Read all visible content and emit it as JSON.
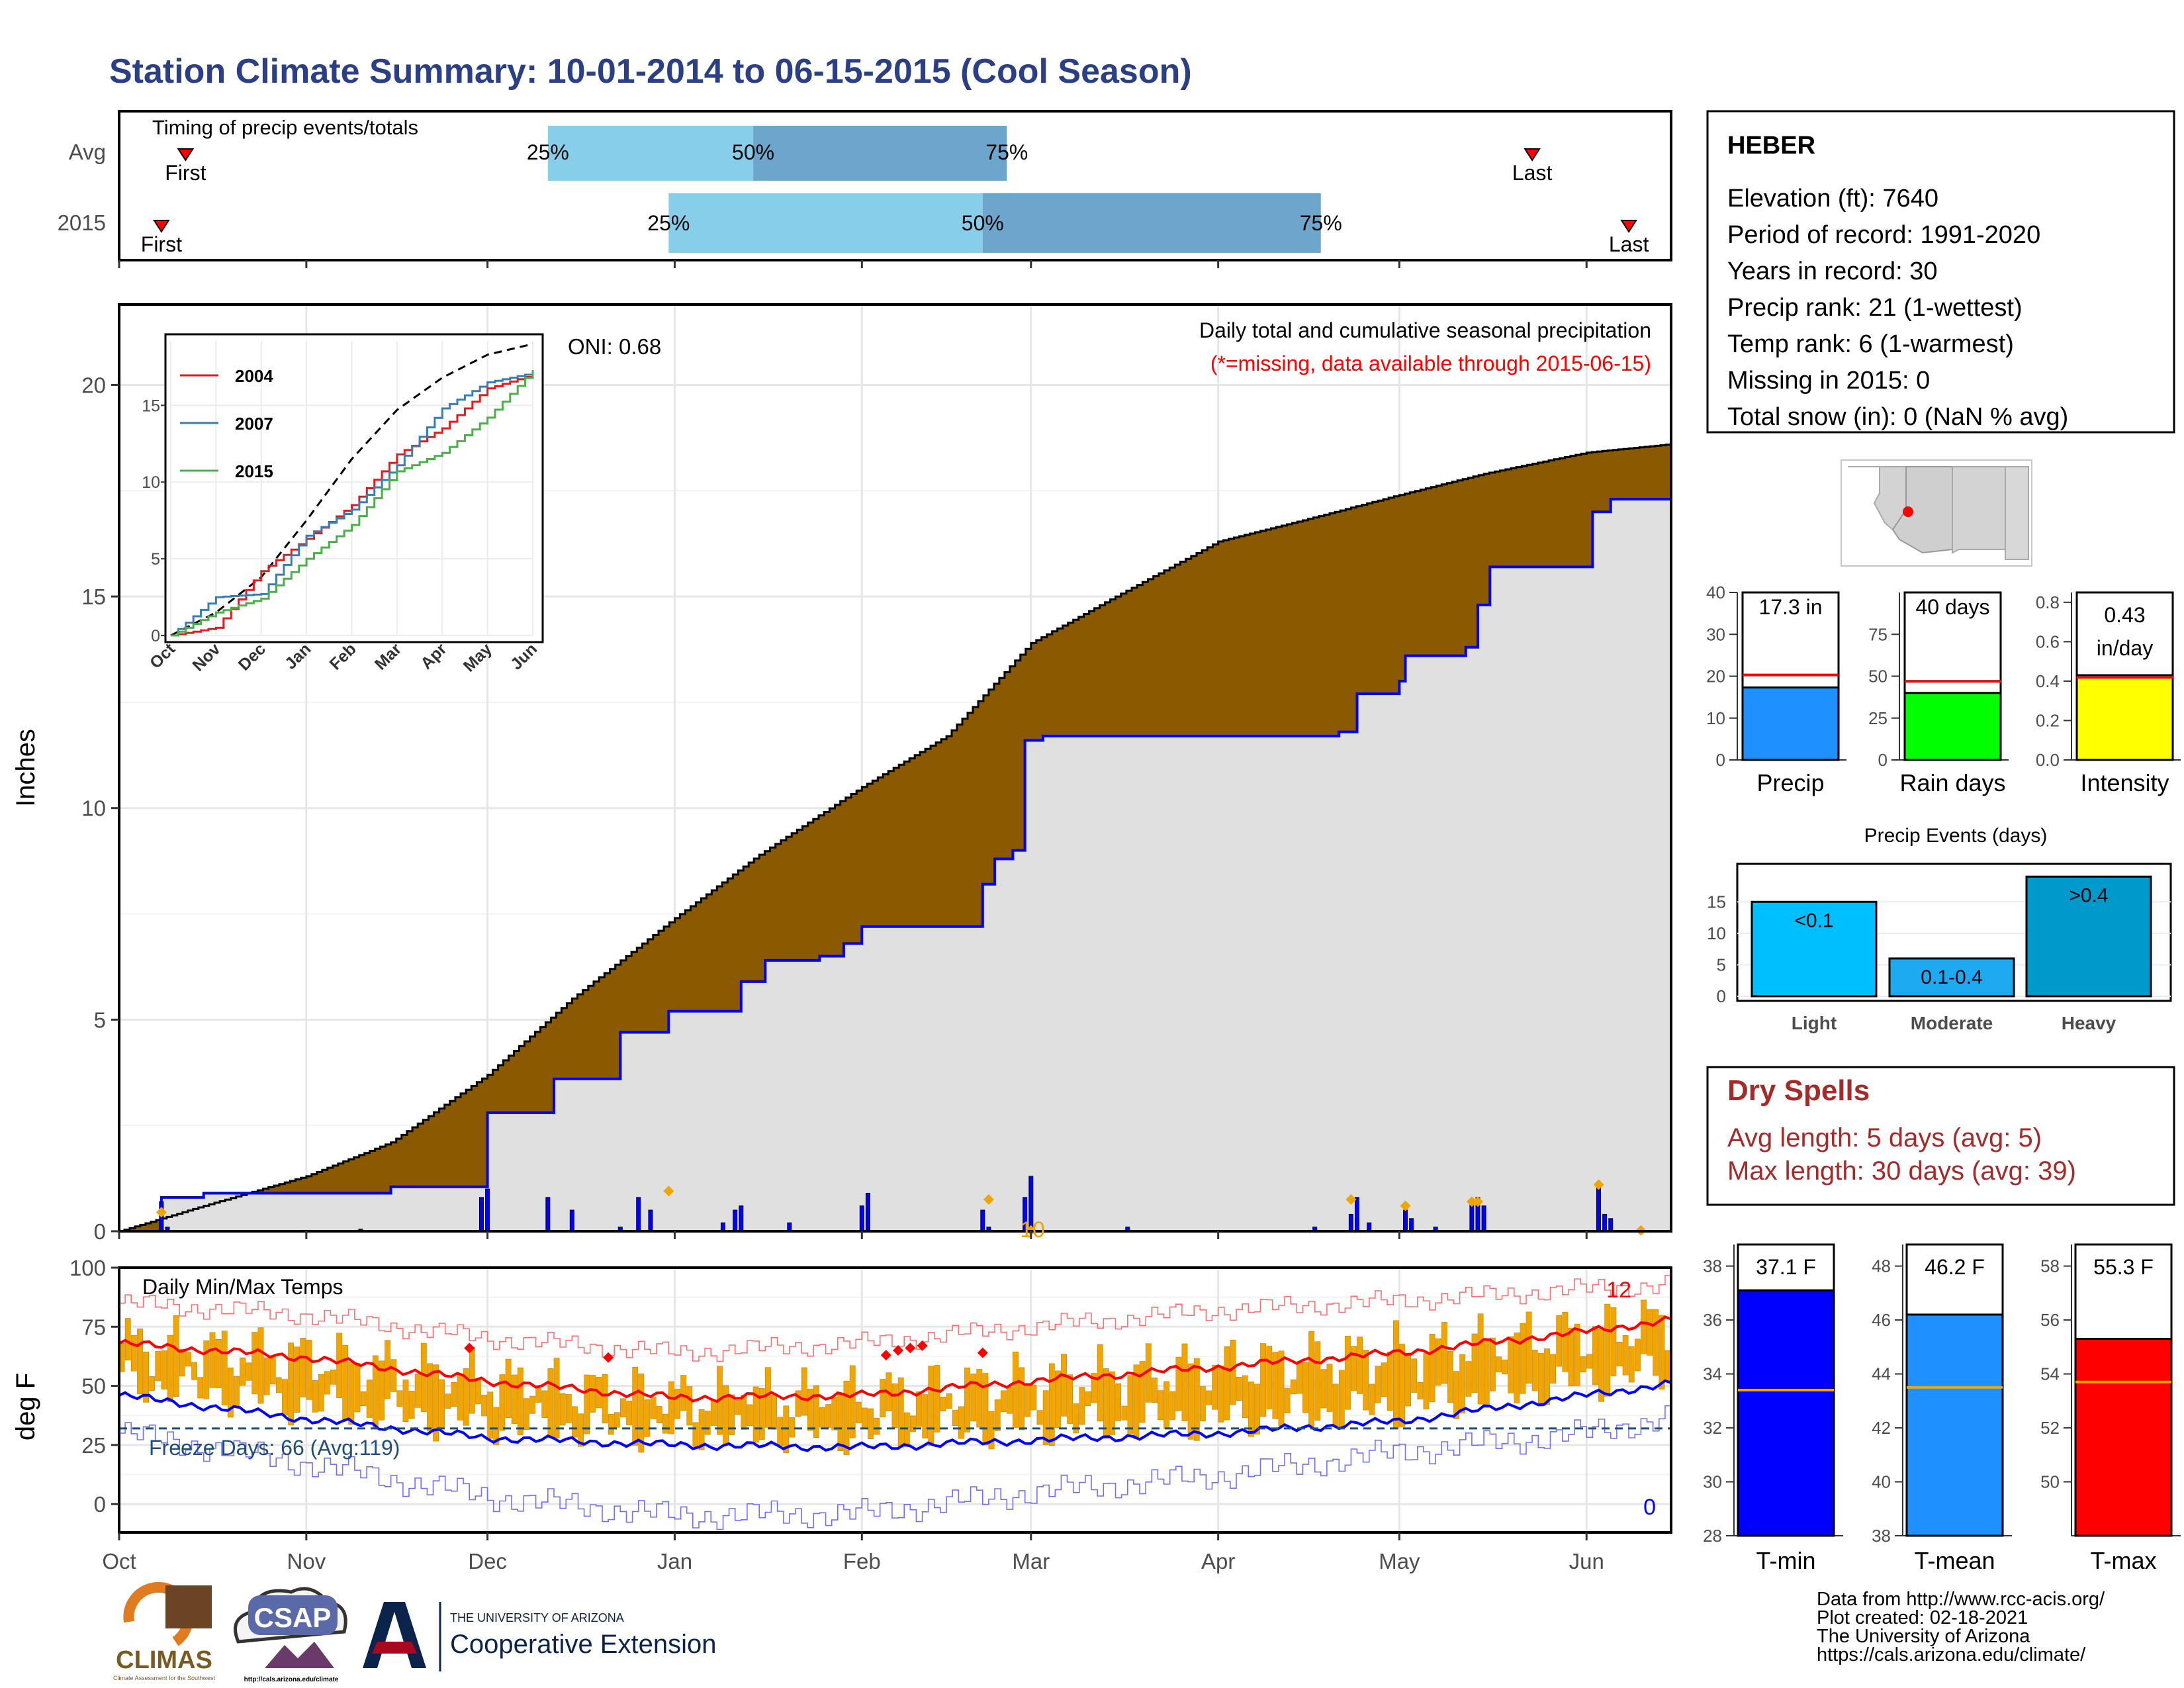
{
  "title": "Station Climate Summary: 10-01-2014 to 06-15-2015 (Cool Season)",
  "colors": {
    "title": "#2b3f87",
    "brown": "#8b5a00",
    "grey_fill": "#e0e0e0",
    "blue_line": "#0000ff",
    "orange": "#f0a500",
    "red": "#ff0000",
    "light_blue_bar": "#87ceeb",
    "mid_blue_bar": "#6ca6cd",
    "dark_red_text": "#a52a2a",
    "navy_text": "#1f4e79"
  },
  "timing": {
    "label": "Timing of precip events/totals",
    "rows": [
      {
        "name": "Avg",
        "first_label": "First",
        "last_label": "Last",
        "first": "2014-10-12",
        "p25": "2014-12-11",
        "p50": "2015-01-14",
        "p75": "2015-02-25",
        "last": "2015-05-23"
      },
      {
        "name": "2015",
        "first_label": "First",
        "last_label": "Last",
        "first": "2014-10-08",
        "p25": "2014-12-31",
        "p50": "2015-02-21",
        "p75": "2015-04-18",
        "last": "2015-06-08"
      }
    ],
    "pct_labels": [
      "25%",
      "50%",
      "75%"
    ]
  },
  "station": {
    "name": "HEBER",
    "lines": [
      "Elevation (ft): 7640",
      "Period of record: 1991-2020",
      "Years in record: 30",
      "Precip rank: 21 (1-wettest)",
      "Temp rank: 6 (1-warmest)",
      "Missing in 2015: 0",
      "Total snow (in): 0 (NaN % avg)"
    ]
  },
  "precip_panel": {
    "ylabel": "Inches",
    "title_line1": "Daily total and cumulative seasonal precipitation",
    "title_line2": "(*=missing, data available through 2015-06-15)",
    "oni": "ONI: 0.68",
    "count_label": "10",
    "yticks": [
      "0",
      "5",
      "10",
      "15",
      "20"
    ],
    "inset": {
      "legend": [
        "2004",
        "2007",
        "2015"
      ],
      "legend_colors": [
        "#e41a1c",
        "#377eb8",
        "#4daf4a"
      ],
      "yticks": [
        "0",
        "5",
        "10",
        "15"
      ],
      "xticks": [
        "Oct",
        "Nov",
        "Dec",
        "Jan",
        "Feb",
        "Mar",
        "Apr",
        "May",
        "Jun"
      ]
    }
  },
  "temp_panel": {
    "ylabel": "deg F",
    "label": "Daily Min/Max Temps",
    "freeze_text": "Freeze Days: 66 (Avg:119)",
    "hot_count": "12",
    "cold_count": "0",
    "yticks": [
      "0",
      "25",
      "50",
      "75",
      "100"
    ]
  },
  "months": [
    "Oct",
    "Nov",
    "Dec",
    "Jan",
    "Feb",
    "Mar",
    "Apr",
    "May",
    "Jun"
  ],
  "side_bars": [
    {
      "label": "Precip",
      "value_text": "17.3 in",
      "value": 17.3,
      "avg": 20.3,
      "ymax": 40,
      "yticks": [
        "0",
        "10",
        "20",
        "30",
        "40"
      ],
      "tickvals": [
        0,
        10,
        20,
        30,
        40
      ],
      "color": "#1e90ff"
    },
    {
      "label": "Rain days",
      "value_text": "40 days",
      "value": 40,
      "avg": 47,
      "ymax": 100,
      "yticks": [
        "0",
        "25",
        "50",
        "75"
      ],
      "tickvals": [
        0,
        25,
        50,
        75
      ],
      "color": "#00ff00"
    },
    {
      "label": "Intensity",
      "value_text_1": "0.43",
      "value_text_2": "in/day",
      "value": 0.43,
      "avg": 0.42,
      "ymax": 0.85,
      "yticks": [
        "0.0",
        "0.2",
        "0.4",
        "0.6",
        "0.8"
      ],
      "tickvals": [
        0,
        0.2,
        0.4,
        0.6,
        0.8
      ],
      "color": "#ffff00"
    }
  ],
  "events": {
    "title": "Precip Events (days)",
    "categories": [
      "Light",
      "Moderate",
      "Heavy"
    ],
    "labels": [
      "<0.1",
      "0.1-0.4",
      ">0.4"
    ],
    "values": [
      15,
      6,
      19
    ],
    "colors": [
      "#00bfff",
      "#1eaaf0",
      "#0099cc"
    ],
    "yticks": [
      "0",
      "5",
      "10",
      "15"
    ]
  },
  "dry_spells": {
    "title": "Dry Spells",
    "avg_length": "Avg length: 5 days (avg: 5)",
    "max_length": "Max length: 30 days (avg: 39)"
  },
  "temp_bars": [
    {
      "label": "T-min",
      "value_text": "37.1 F",
      "value": 37.1,
      "avg": 33.4,
      "ymin": 28,
      "ymax": 38.8,
      "yticks": [
        "28",
        "30",
        "32",
        "34",
        "36",
        "38"
      ],
      "tickvals": [
        28,
        30,
        32,
        34,
        36,
        38
      ],
      "color": "#0000ff"
    },
    {
      "label": "T-mean",
      "value_text": "46.2 F",
      "value": 46.2,
      "avg": 43.5,
      "ymin": 38,
      "ymax": 48.8,
      "yticks": [
        "38",
        "40",
        "42",
        "44",
        "46",
        "48"
      ],
      "tickvals": [
        38,
        40,
        42,
        44,
        46,
        48
      ],
      "color": "#1e90ff"
    },
    {
      "label": "T-max",
      "value_text": "55.3 F",
      "value": 55.3,
      "avg": 53.7,
      "ymin": 48,
      "ymax": 58.8,
      "yticks": [
        "50",
        "52",
        "54",
        "56",
        "58"
      ],
      "tickvals": [
        50,
        52,
        54,
        56,
        58
      ],
      "color": "#ff0000"
    }
  ],
  "footer": {
    "lines": [
      "Data from http://www.rcc-acis.org/",
      "Plot created: 02-18-2021",
      "The University of Arizona",
      "https://cals.arizona.edu/climate/"
    ],
    "climas": "CLIMAS",
    "climas_sub": "Climate Assessment for the Southwest",
    "csap": "CSAP",
    "csap_url": "http://cals.arizona.edu/climate",
    "ua_top": "THE UNIVERSITY OF ARIZONA",
    "ua_bottom": "Cooperative Extension",
    "ua_letter": "A"
  },
  "chart_data": [
    {
      "type": "bar",
      "title": "Timing of precip events/totals",
      "categories": [
        "Avg",
        "2015"
      ],
      "series": [
        {
          "name": "First",
          "values": [
            "2014-10-12",
            "2014-10-08"
          ]
        },
        {
          "name": "25%",
          "values": [
            "2014-12-11",
            "2014-12-31"
          ]
        },
        {
          "name": "50%",
          "values": [
            "2015-01-14",
            "2015-02-21"
          ]
        },
        {
          "name": "75%",
          "values": [
            "2015-02-25",
            "2015-04-18"
          ]
        },
        {
          "name": "Last",
          "values": [
            "2015-05-23",
            "2015-06-08"
          ]
        }
      ]
    },
    {
      "type": "area",
      "title": "Daily total and cumulative seasonal precipitation",
      "ylabel": "Inches",
      "ylim": [
        0,
        20.5
      ],
      "xlim": [
        "2014-10-01",
        "2015-06-15"
      ],
      "series": [
        {
          "name": "Avg",
          "points": [
            [
              "2014-10-01",
              0
            ],
            [
              "2014-10-15",
              0.6
            ],
            [
              "2014-11-01",
              1.3
            ],
            [
              "2014-11-15",
              2.1
            ],
            [
              "2014-12-01",
              3.7
            ],
            [
              "2014-12-15",
              5.5
            ],
            [
              "2015-01-01",
              7.4
            ],
            [
              "2015-01-15",
              8.9
            ],
            [
              "2015-02-01",
              10.5
            ],
            [
              "2015-02-15",
              11.7
            ],
            [
              "2015-03-01",
              13.9
            ],
            [
              "2015-03-15",
              15.0
            ],
            [
              "2015-04-01",
              16.3
            ],
            [
              "2015-04-15",
              16.8
            ],
            [
              "2015-05-01",
              17.4
            ],
            [
              "2015-05-15",
              17.9
            ],
            [
              "2015-06-01",
              18.4
            ],
            [
              "2015-06-15",
              18.6
            ]
          ]
        },
        {
          "name": "2015",
          "points": [
            [
              "2014-10-01",
              0
            ],
            [
              "2014-10-08",
              0.8
            ],
            [
              "2014-10-15",
              0.9
            ],
            [
              "2014-11-01",
              0.9
            ],
            [
              "2014-11-15",
              1.05
            ],
            [
              "2014-11-30",
              1.05
            ],
            [
              "2014-12-01",
              2.8
            ],
            [
              "2014-12-12",
              3.6
            ],
            [
              "2014-12-23",
              4.7
            ],
            [
              "2014-12-31",
              5.2
            ],
            [
              "2015-01-09",
              5.2
            ],
            [
              "2015-01-12",
              5.9
            ],
            [
              "2015-01-16",
              6.4
            ],
            [
              "2015-01-25",
              6.5
            ],
            [
              "2015-01-29",
              6.8
            ],
            [
              "2015-02-01",
              7.2
            ],
            [
              "2015-02-21",
              8.2
            ],
            [
              "2015-02-23",
              8.8
            ],
            [
              "2015-02-26",
              9.0
            ],
            [
              "2015-02-28",
              11.6
            ],
            [
              "2015-03-03",
              11.7
            ],
            [
              "2015-04-06",
              11.7
            ],
            [
              "2015-04-21",
              11.8
            ],
            [
              "2015-04-24",
              12.7
            ],
            [
              "2015-05-01",
              13.0
            ],
            [
              "2015-05-02",
              13.6
            ],
            [
              "2015-05-12",
              13.8
            ],
            [
              "2015-05-14",
              14.8
            ],
            [
              "2015-05-16",
              15.7
            ],
            [
              "2015-06-01",
              15.7
            ],
            [
              "2015-06-02",
              17.0
            ],
            [
              "2015-06-05",
              17.3
            ],
            [
              "2015-06-15",
              17.3
            ]
          ]
        },
        {
          "name": "Daily",
          "points": [
            [
              "2014-10-08",
              0.7
            ],
            [
              "2014-10-09",
              0.1
            ],
            [
              "2014-11-10",
              0.05
            ],
            [
              "2014-11-30",
              0.8
            ],
            [
              "2014-12-01",
              1.0
            ],
            [
              "2014-12-11",
              0.8
            ],
            [
              "2014-12-15",
              0.5
            ],
            [
              "2014-12-23",
              0.1
            ],
            [
              "2014-12-26",
              0.8
            ],
            [
              "2014-12-28",
              0.5
            ],
            [
              "2015-01-09",
              0.2
            ],
            [
              "2015-01-11",
              0.5
            ],
            [
              "2015-01-12",
              0.6
            ],
            [
              "2015-01-20",
              0.2
            ],
            [
              "2015-02-01",
              0.6
            ],
            [
              "2015-02-02",
              0.9
            ],
            [
              "2015-02-21",
              0.5
            ],
            [
              "2015-02-22",
              0.1
            ],
            [
              "2015-02-28",
              0.8
            ],
            [
              "2015-03-01",
              1.3
            ],
            [
              "2015-03-17",
              0.1
            ],
            [
              "2015-04-17",
              0.1
            ],
            [
              "2015-04-23",
              0.4
            ],
            [
              "2015-04-24",
              0.8
            ],
            [
              "2015-04-26",
              0.2
            ],
            [
              "2015-05-02",
              0.5
            ],
            [
              "2015-05-03",
              0.3
            ],
            [
              "2015-05-07",
              0.1
            ],
            [
              "2015-05-13",
              0.7
            ],
            [
              "2015-05-14",
              0.8
            ],
            [
              "2015-05-15",
              0.6
            ],
            [
              "2015-06-03",
              1.1
            ],
            [
              "2015-06-04",
              0.4
            ],
            [
              "2015-06-05",
              0.3
            ]
          ]
        }
      ]
    },
    {
      "type": "line",
      "title": "",
      "ylim": [
        0,
        19
      ],
      "series": [
        {
          "name": "Avg",
          "x": [
            "Oct",
            "Nov",
            "Dec",
            "Jan",
            "Feb",
            "Mar",
            "Apr",
            "May",
            "Jun"
          ],
          "values": [
            0,
            1.5,
            3.8,
            7.5,
            11.5,
            14.7,
            16.8,
            18.3,
            19.0
          ]
        },
        {
          "name": "2004",
          "x": [
            "Oct",
            "Nov",
            "Dec",
            "Jan",
            "Feb",
            "Mar",
            "Apr",
            "May",
            "Jun"
          ],
          "values": [
            0,
            0.5,
            4.2,
            6.3,
            8.5,
            11.8,
            13.5,
            16.1,
            17.0
          ]
        },
        {
          "name": "2007",
          "x": [
            "Oct",
            "Nov",
            "Dec",
            "Jan",
            "Feb",
            "Mar",
            "Apr",
            "May",
            "Jun"
          ],
          "values": [
            0,
            2.5,
            2.7,
            6.5,
            8.2,
            11.1,
            14.8,
            16.5,
            17.1
          ]
        },
        {
          "name": "2015",
          "x": [
            "Oct",
            "Nov",
            "Dec",
            "Jan",
            "Feb",
            "Mar",
            "Apr",
            "May",
            "Jun"
          ],
          "values": [
            0,
            1.5,
            2.4,
            5.0,
            7.2,
            10.7,
            11.9,
            14.2,
            17.3
          ]
        }
      ]
    },
    {
      "type": "line",
      "title": "Daily Min/Max Temps",
      "ylabel": "deg F",
      "ylim": [
        -12,
        100
      ],
      "series": [
        {
          "name": "Avg max",
          "x": [
            "2014-10-01",
            "2014-11-01",
            "2014-12-01",
            "2015-01-01",
            "2015-02-01",
            "2015-03-01",
            "2015-04-01",
            "2015-05-01",
            "2015-06-01",
            "2015-06-15"
          ],
          "values": [
            68,
            62,
            52,
            45,
            46,
            52,
            58,
            64,
            73,
            78
          ]
        },
        {
          "name": "Avg min",
          "x": [
            "2014-10-01",
            "2014-11-01",
            "2014-12-01",
            "2015-01-01",
            "2015-02-01",
            "2015-03-01",
            "2015-04-01",
            "2015-05-01",
            "2015-06-01",
            "2015-06-15"
          ],
          "values": [
            46,
            36,
            28,
            25,
            24,
            27,
            30,
            35,
            46,
            51
          ]
        },
        {
          "name": "Record max",
          "x": [
            "2014-10-01",
            "2014-11-01",
            "2014-12-01",
            "2015-01-01",
            "2015-02-01",
            "2015-03-01",
            "2015-04-01",
            "2015-05-01",
            "2015-06-01",
            "2015-06-15"
          ],
          "values": [
            85,
            80,
            70,
            64,
            68,
            75,
            82,
            86,
            91,
            93
          ]
        },
        {
          "name": "Record min",
          "x": [
            "2014-10-01",
            "2014-11-01",
            "2014-12-01",
            "2015-01-01",
            "2015-02-01",
            "2015-03-01",
            "2015-04-01",
            "2015-05-01",
            "2015-06-01",
            "2015-06-15"
          ],
          "values": [
            30,
            17,
            3,
            -5,
            -4,
            5,
            12,
            22,
            30,
            37
          ]
        },
        {
          "name": "Freeze line",
          "x": [
            "2014-10-01",
            "2015-06-15"
          ],
          "values": [
            32,
            32
          ]
        }
      ]
    },
    {
      "type": "bar",
      "title": "",
      "categories": [
        "Precip",
        "Rain days",
        "Intensity"
      ],
      "series": [
        {
          "name": "2015",
          "values": [
            17.3,
            40,
            0.43
          ]
        },
        {
          "name": "Avg",
          "values": [
            20.3,
            47,
            0.42
          ]
        }
      ]
    },
    {
      "type": "bar",
      "title": "Precip Events (days)",
      "categories": [
        "Light",
        "Moderate",
        "Heavy"
      ],
      "values": [
        15,
        6,
        19
      ]
    },
    {
      "type": "bar",
      "title": "",
      "categories": [
        "T-min",
        "T-mean",
        "T-max"
      ],
      "series": [
        {
          "name": "2015",
          "values": [
            37.1,
            46.2,
            55.3
          ]
        },
        {
          "name": "Avg",
          "values": [
            33.4,
            43.5,
            53.7
          ]
        }
      ]
    }
  ]
}
